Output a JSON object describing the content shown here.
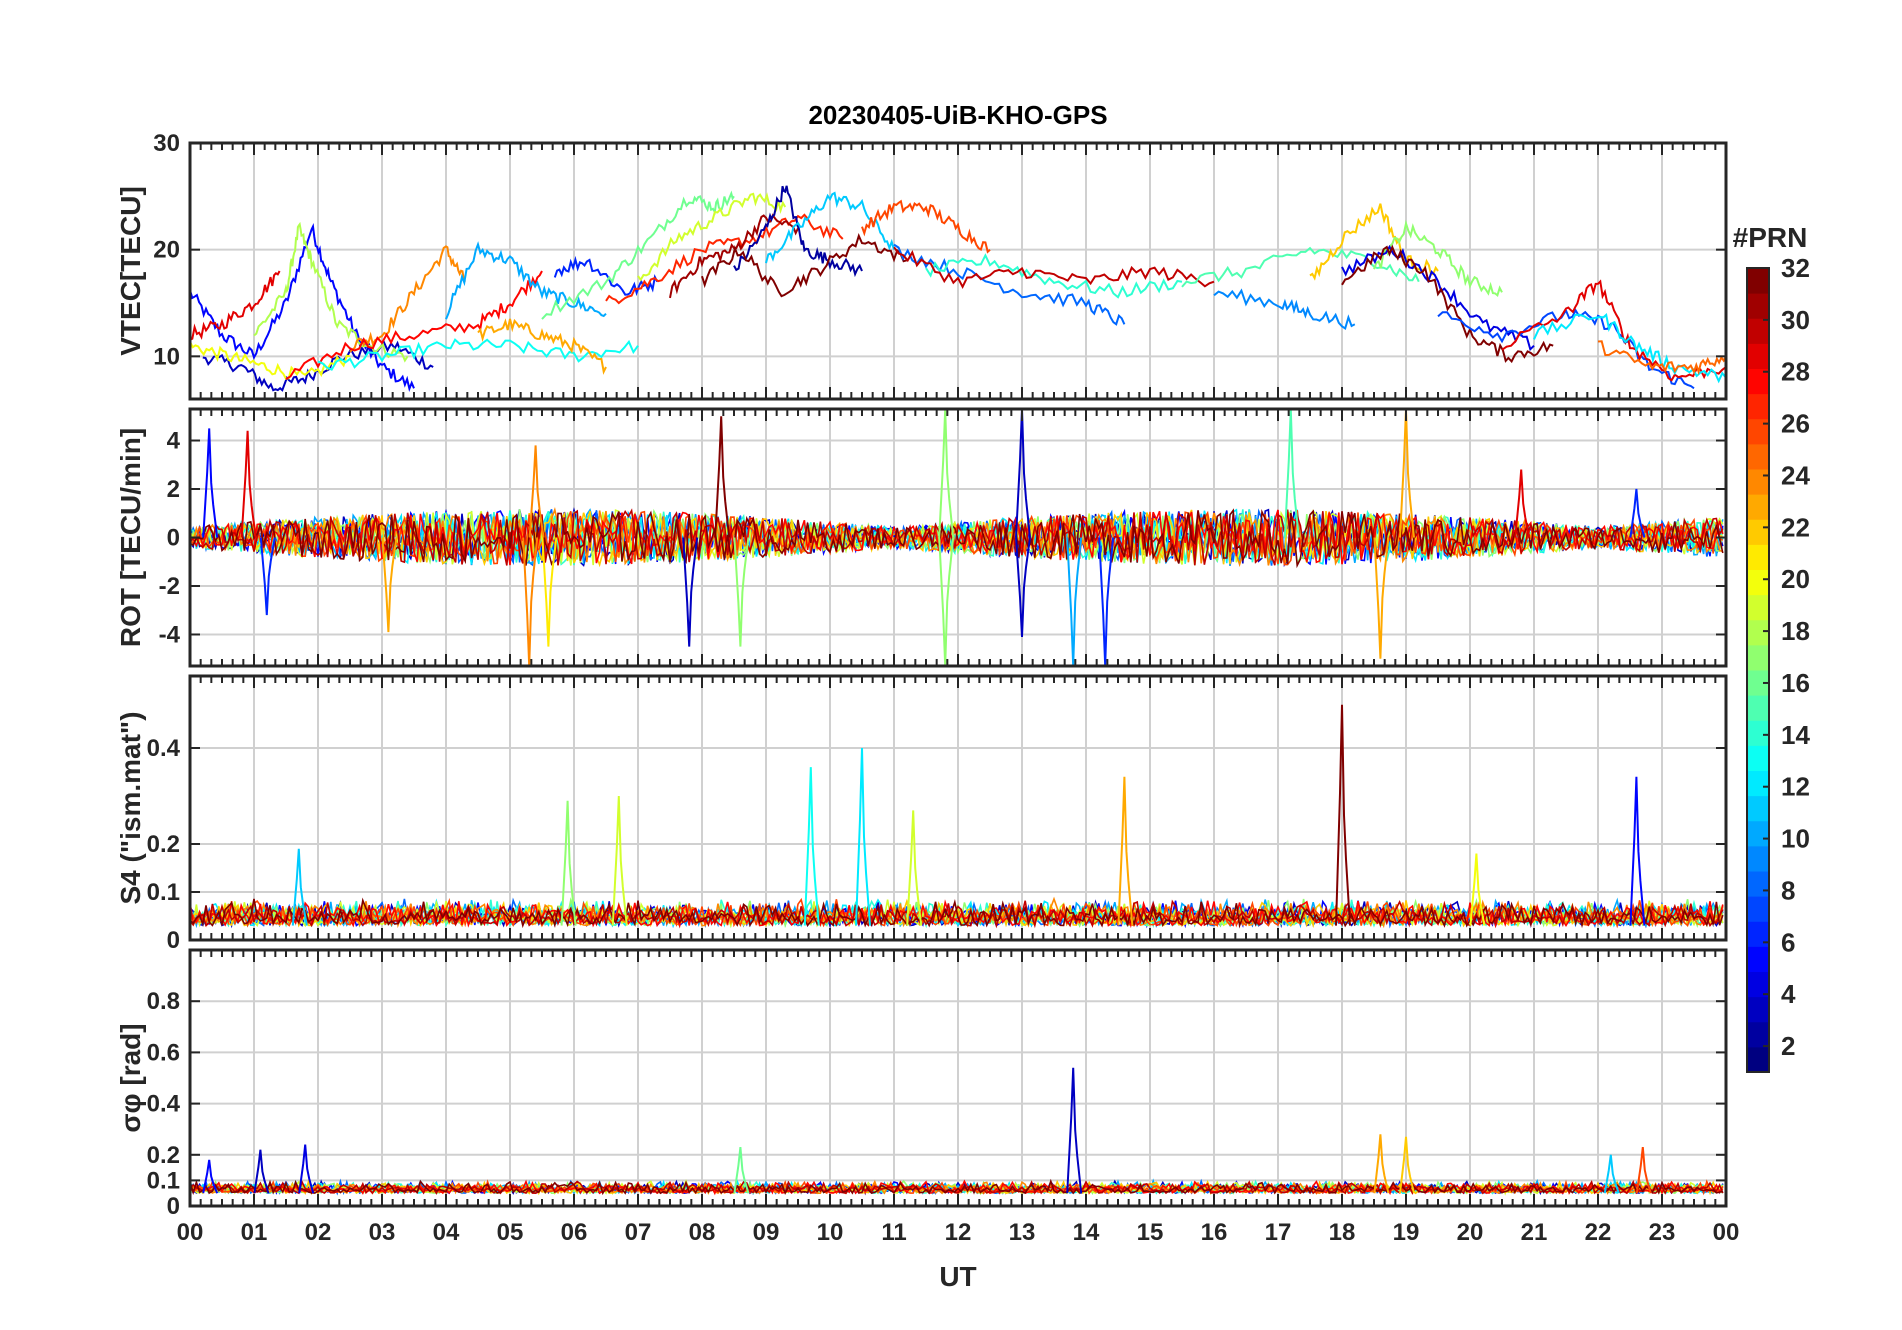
{
  "figure": {
    "title": "20230405-UiB-KHO-GPS",
    "x_label": "UT",
    "x_ticks": [
      "00",
      "01",
      "02",
      "03",
      "04",
      "05",
      "06",
      "07",
      "08",
      "09",
      "10",
      "11",
      "12",
      "13",
      "14",
      "15",
      "16",
      "17",
      "18",
      "19",
      "20",
      "21",
      "22",
      "23",
      "00"
    ]
  },
  "colorbar": {
    "title": "#PRN",
    "ticks": [
      "2",
      "4",
      "6",
      "8",
      "10",
      "12",
      "14",
      "16",
      "18",
      "20",
      "22",
      "24",
      "26",
      "28",
      "30",
      "32"
    ],
    "range": [
      1,
      32
    ],
    "colormap": "jet"
  },
  "chart_data": [
    {
      "type": "line",
      "panel": "vtec",
      "ylabel": "VTEC[TECU]",
      "ylim": [
        6,
        30
      ],
      "y_ticks": [
        "10",
        "20",
        "30"
      ],
      "y_tick_values": [
        10,
        20,
        30
      ],
      "xlim": [
        0,
        24
      ],
      "grid": true,
      "series": [
        {
          "name": "PRN 5",
          "prn": 5,
          "x": [
            0.0,
            0.5,
            1.0,
            1.5,
            1.9,
            2.2,
            2.6,
            3.0,
            3.5
          ],
          "values": [
            16,
            12,
            10,
            15,
            22,
            17,
            12,
            9,
            7
          ]
        },
        {
          "name": "PRN 3",
          "prn": 3,
          "x": [
            0.2,
            0.8,
            1.3,
            1.8,
            2.4,
            3.2,
            3.8
          ],
          "values": [
            10,
            9,
            7,
            8,
            10,
            11,
            9
          ]
        },
        {
          "name": "PRN 18",
          "prn": 18,
          "x": [
            1.0,
            1.5,
            1.7,
            1.9,
            2.3,
            2.8,
            3.4
          ],
          "values": [
            12,
            16,
            22,
            19,
            13,
            11,
            10
          ]
        },
        {
          "name": "PRN 20",
          "prn": 20,
          "x": [
            0.0,
            0.6,
            1.2,
            1.8,
            2.5
          ],
          "values": [
            11,
            10,
            9,
            8,
            10
          ]
        },
        {
          "name": "PRN 29",
          "prn": 29,
          "x": [
            0.0,
            0.5,
            1.0,
            1.4
          ],
          "values": [
            12,
            13,
            15,
            18
          ]
        },
        {
          "name": "PRN 24",
          "prn": 24,
          "x": [
            2.5,
            3.0,
            3.5,
            4.0,
            4.3
          ],
          "values": [
            11,
            12,
            16,
            20,
            17
          ]
        },
        {
          "name": "PRN 28",
          "prn": 28,
          "x": [
            1.5,
            2.5,
            3.5,
            4.5,
            5.0,
            5.5
          ],
          "values": [
            8,
            11,
            12,
            13,
            15,
            18
          ]
        },
        {
          "name": "PRN 10",
          "prn": 10,
          "x": [
            4.0,
            4.5,
            5.0,
            5.5,
            6.0,
            6.5
          ],
          "values": [
            14,
            20,
            19,
            16,
            15,
            14
          ]
        },
        {
          "name": "PRN 13",
          "prn": 13,
          "x": [
            2.0,
            3.0,
            4.0,
            5.0,
            6.0,
            7.0
          ],
          "values": [
            9,
            10,
            11,
            11,
            10,
            11
          ]
        },
        {
          "name": "PRN 23",
          "prn": 23,
          "x": [
            4.5,
            5.0,
            5.5,
            6.0,
            6.5
          ],
          "values": [
            12,
            13,
            12,
            11,
            9
          ]
        },
        {
          "name": "PRN 6",
          "prn": 6,
          "x": [
            5.7,
            6.2,
            6.8,
            7.3
          ],
          "values": [
            18,
            19,
            16,
            17
          ]
        },
        {
          "name": "PRN 16",
          "prn": 16,
          "x": [
            5.5,
            6.5,
            7.2,
            7.8,
            8.2,
            8.5
          ],
          "values": [
            14,
            17,
            21,
            25,
            24,
            25
          ]
        },
        {
          "name": "PRN 19",
          "prn": 19,
          "x": [
            7.0,
            7.6,
            8.2,
            8.8,
            9.3
          ],
          "values": [
            17,
            21,
            23,
            25,
            24
          ]
        },
        {
          "name": "PRN 27",
          "prn": 27,
          "x": [
            6.5,
            7.2,
            8.0,
            8.8,
            9.5,
            10.2
          ],
          "values": [
            15,
            17,
            20,
            21,
            23,
            21
          ]
        },
        {
          "name": "PRN 31",
          "prn": 31,
          "x": [
            7.5,
            8.0,
            8.5,
            9.0,
            9.5
          ],
          "values": [
            16,
            19,
            20,
            23,
            22
          ]
        },
        {
          "name": "PRN 2",
          "prn": 2,
          "x": [
            8.5,
            9.0,
            9.3,
            9.6,
            10.0,
            10.5
          ],
          "values": [
            18,
            22,
            26,
            20,
            19,
            18
          ]
        },
        {
          "name": "PRN 11",
          "prn": 11,
          "x": [
            9.0,
            9.5,
            10.0,
            10.5,
            11.0
          ],
          "values": [
            19,
            22,
            25,
            24,
            20
          ]
        },
        {
          "name": "PRN 32",
          "prn": 32,
          "x": [
            8.0,
            8.6,
            9.2,
            9.8,
            10.5,
            11.2
          ],
          "values": [
            17,
            20,
            16,
            18,
            21,
            19
          ]
        },
        {
          "name": "PRN 26",
          "prn": 26,
          "x": [
            10.5,
            11.0,
            11.5,
            12.0,
            12.5
          ],
          "values": [
            22,
            24,
            24,
            22,
            20
          ]
        },
        {
          "name": "PRN 8",
          "prn": 8,
          "x": [
            11.0,
            12.0,
            13.0,
            14.0,
            14.6
          ],
          "values": [
            20,
            18,
            16,
            15,
            13
          ]
        },
        {
          "name": "PRN 14",
          "prn": 14,
          "x": [
            11.5,
            12.5,
            13.5,
            14.5,
            15.5
          ],
          "values": [
            18,
            19,
            17,
            16,
            17
          ]
        },
        {
          "name": "PRN 30",
          "prn": 30,
          "x": [
            11.0,
            12.0,
            13.0,
            14.0,
            15.0,
            16.0
          ],
          "values": [
            20,
            17,
            18,
            17,
            18,
            17
          ]
        },
        {
          "name": "PRN 15",
          "prn": 15,
          "x": [
            15.5,
            16.5,
            17.5,
            18.5,
            19.2
          ],
          "values": [
            17,
            18,
            20,
            19,
            17
          ]
        },
        {
          "name": "PRN 9",
          "prn": 9,
          "x": [
            16.0,
            17.0,
            17.5,
            18.2
          ],
          "values": [
            16,
            15,
            14,
            13
          ]
        },
        {
          "name": "PRN 22",
          "prn": 22,
          "x": [
            17.5,
            18.0,
            18.6,
            19.0,
            19.5
          ],
          "values": [
            17,
            21,
            24,
            19,
            18
          ]
        },
        {
          "name": "PRN 17",
          "prn": 17,
          "x": [
            18.5,
            19.0,
            19.5,
            20.0,
            20.5
          ],
          "values": [
            18,
            22,
            20,
            17,
            16
          ]
        },
        {
          "name": "PRN 4",
          "prn": 4,
          "x": [
            18.0,
            18.8,
            19.5,
            20.2,
            21.0
          ],
          "values": [
            18,
            20,
            17,
            13,
            11
          ]
        },
        {
          "name": "PRN 32b",
          "prn": 32,
          "x": [
            18.0,
            18.7,
            19.3,
            20.0,
            20.6,
            21.3
          ],
          "values": [
            17,
            20,
            18,
            12,
            10,
            11
          ]
        },
        {
          "name": "PRN 7",
          "prn": 7,
          "x": [
            19.5,
            20.5,
            21.5,
            22.2,
            22.8,
            23.5
          ],
          "values": [
            14,
            12,
            14,
            13,
            9,
            7
          ]
        },
        {
          "name": "PRN 29b",
          "prn": 29,
          "x": [
            20.5,
            21.5,
            22.0,
            22.5,
            23.2,
            24.0
          ],
          "values": [
            11,
            14,
            17,
            11,
            8,
            9
          ]
        },
        {
          "name": "PRN 12",
          "prn": 12,
          "x": [
            21.0,
            22.0,
            22.6,
            23.2,
            24.0
          ],
          "values": [
            12,
            14,
            11,
            9,
            8
          ]
        },
        {
          "name": "PRN 25",
          "prn": 25,
          "x": [
            22.0,
            22.8,
            23.5,
            24.0
          ],
          "values": [
            11,
            9,
            9,
            10
          ]
        }
      ]
    },
    {
      "type": "line",
      "panel": "rot",
      "ylabel": "ROT [TECU/min]",
      "ylim": [
        -5.3,
        5.3
      ],
      "y_ticks": [
        "-4",
        "-2",
        "0",
        "2",
        "4"
      ],
      "y_tick_values": [
        -4,
        -2,
        0,
        2,
        4
      ],
      "xlim": [
        0,
        24
      ],
      "grid": true,
      "noise_baseline": 0,
      "spikes": [
        {
          "x": 0.3,
          "y": 4.5,
          "prn": 5
        },
        {
          "x": 0.9,
          "y": 4.4,
          "prn": 29
        },
        {
          "x": 1.2,
          "y": -3.2,
          "prn": 6
        },
        {
          "x": 5.3,
          "y": -5.3,
          "prn": 24
        },
        {
          "x": 5.4,
          "y": 3.8,
          "prn": 24
        },
        {
          "x": 5.6,
          "y": -4.5,
          "prn": 21
        },
        {
          "x": 3.1,
          "y": -3.9,
          "prn": 23
        },
        {
          "x": 7.8,
          "y": -4.5,
          "prn": 3
        },
        {
          "x": 8.3,
          "y": 5.0,
          "prn": 32
        },
        {
          "x": 8.6,
          "y": -4.5,
          "prn": 17
        },
        {
          "x": 11.8,
          "y": 5.3,
          "prn": 17
        },
        {
          "x": 11.8,
          "y": -5.3,
          "prn": 17
        },
        {
          "x": 13.0,
          "y": 5.3,
          "prn": 3
        },
        {
          "x": 13.0,
          "y": -4.1,
          "prn": 3
        },
        {
          "x": 13.8,
          "y": -5.3,
          "prn": 10
        },
        {
          "x": 14.3,
          "y": -5.3,
          "prn": 6
        },
        {
          "x": 17.2,
          "y": 5.3,
          "prn": 15
        },
        {
          "x": 18.6,
          "y": -5.0,
          "prn": 23
        },
        {
          "x": 19.0,
          "y": 5.3,
          "prn": 23
        },
        {
          "x": 20.8,
          "y": 2.8,
          "prn": 29
        },
        {
          "x": 22.6,
          "y": 2.0,
          "prn": 6
        }
      ]
    },
    {
      "type": "line",
      "panel": "s4",
      "ylabel": "S4 (\"ism.mat\")",
      "ylim": [
        0,
        0.55
      ],
      "y_ticks": [
        "0",
        "0.1",
        "0.2",
        "0.4"
      ],
      "y_tick_values": [
        0,
        0.1,
        0.2,
        0.4
      ],
      "xlim": [
        0,
        24
      ],
      "grid": true,
      "noise_baseline": 0.03,
      "spikes": [
        {
          "x": 1.7,
          "y": 0.19,
          "prn": 11
        },
        {
          "x": 5.9,
          "y": 0.29,
          "prn": 17
        },
        {
          "x": 6.7,
          "y": 0.3,
          "prn": 19
        },
        {
          "x": 9.7,
          "y": 0.36,
          "prn": 13
        },
        {
          "x": 10.5,
          "y": 0.4,
          "prn": 12
        },
        {
          "x": 11.3,
          "y": 0.27,
          "prn": 19
        },
        {
          "x": 14.6,
          "y": 0.34,
          "prn": 23
        },
        {
          "x": 18.0,
          "y": 0.49,
          "prn": 32
        },
        {
          "x": 20.1,
          "y": 0.18,
          "prn": 20
        },
        {
          "x": 22.6,
          "y": 0.34,
          "prn": 5
        }
      ]
    },
    {
      "type": "line",
      "panel": "sigma_phi",
      "ylabel": "σφ [rad]",
      "ylim": [
        0,
        1.0
      ],
      "y_ticks": [
        "0",
        "0.1",
        "0.2",
        "0.4",
        "0.6",
        "0.8"
      ],
      "y_tick_values": [
        0,
        0.1,
        0.2,
        0.4,
        0.6,
        0.8
      ],
      "xlim": [
        0,
        24
      ],
      "grid": true,
      "noise_baseline": 0.05,
      "spikes": [
        {
          "x": 0.3,
          "y": 0.18,
          "prn": 5
        },
        {
          "x": 1.1,
          "y": 0.22,
          "prn": 3
        },
        {
          "x": 1.8,
          "y": 0.24,
          "prn": 4
        },
        {
          "x": 8.6,
          "y": 0.23,
          "prn": 16
        },
        {
          "x": 13.8,
          "y": 0.54,
          "prn": 3
        },
        {
          "x": 18.6,
          "y": 0.28,
          "prn": 23
        },
        {
          "x": 19.0,
          "y": 0.27,
          "prn": 22
        },
        {
          "x": 22.2,
          "y": 0.2,
          "prn": 11
        },
        {
          "x": 22.7,
          "y": 0.23,
          "prn": 26
        }
      ]
    }
  ]
}
